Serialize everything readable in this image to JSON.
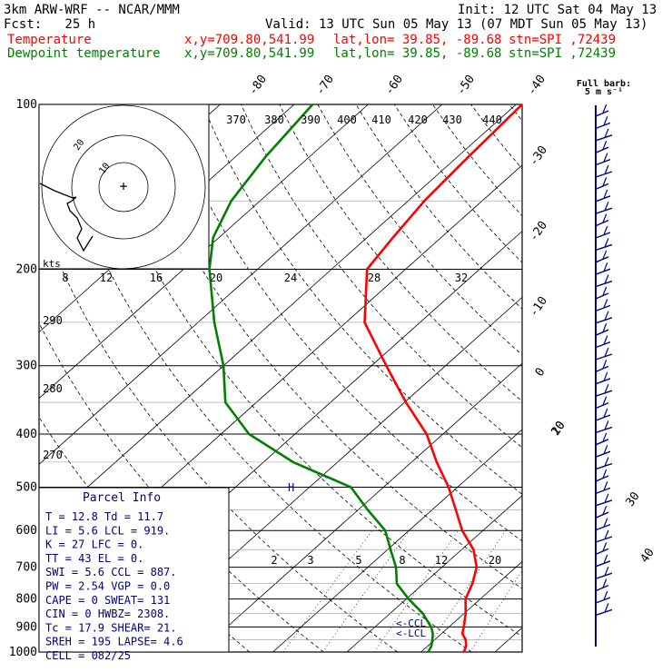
{
  "header": {
    "model": "3km ARW-WRF -- NCAR/MMM",
    "init": "Init: 12 UTC Sat 04 May 13",
    "fcst": "Fcst:   25 h",
    "valid": "Valid: 13 UTC Sun 05 May 13 (07 MDT Sun 05 May 13)",
    "temp_name": "Temperature",
    "dew_name": "Dewpoint temperature",
    "loc_xy": "x,y=709.80,541.99",
    "loc_latlon": "lat,lon= 39.85, -89.68",
    "loc_stn": "stn=SPI ,72439"
  },
  "barb_legend": {
    "line1": "Full barb:",
    "line2": "5 m s⁻¹"
  },
  "hodograph": {
    "units": "kts",
    "rings": [
      "10",
      "20"
    ]
  },
  "pressure_labels": [
    "100",
    "200",
    "300",
    "400",
    "500",
    "600",
    "700",
    "800",
    "900",
    "1000"
  ],
  "theta_labels": [
    "370",
    "380",
    "390",
    "400",
    "410",
    "420",
    "430",
    "440"
  ],
  "mixing_top_labels": [
    "8",
    "12",
    "16",
    "20",
    "24",
    "28",
    "32"
  ],
  "dry_adiabat_labels": [
    "290",
    "280",
    "270"
  ],
  "mixing_ratio_labels": [
    "2",
    "3",
    "5",
    "8",
    "12",
    "20"
  ],
  "temp_axis_labels": [
    "-80",
    "-70",
    "-60",
    "-50",
    "-40",
    "-30",
    "-20",
    "-10",
    "0",
    "10",
    "20",
    "30",
    "40"
  ],
  "marker_h": "H",
  "marker_ccl": "<-CCL",
  "marker_lcl": "<-LCL",
  "parcel": {
    "title": "Parcel Info",
    "rows": [
      "T  =    12.8 Td =  11.7",
      "LI =     5.6 LCL =  919.",
      "K  =      27 LFC =    0.",
      "TT =      43 EL  =    0.",
      "SWI =    5.6 CCL =  887.",
      "PW =    2.54 VGP =   0.0",
      "CAPE =     0 SWEAT=  131",
      "CIN =      0 HWBZ= 2308.",
      "Tc =    17.9 SHEAR=  21.",
      "SREH =   195 LAPSE=  4.6",
      "CELL = 082/25"
    ]
  },
  "colors": {
    "temperature": "#ff0000",
    "dewpoint": "#008000",
    "navy": "#000080",
    "grid": "#000000"
  },
  "chart_data": {
    "type": "line",
    "title": "",
    "xlabel": "",
    "ylabel": "",
    "y_scale": "log",
    "ylim": [
      1000,
      100
    ],
    "series": [
      {
        "name": "Temperature",
        "points": [
          [
            1000,
            15.8
          ],
          [
            975,
            15.2
          ],
          [
            950,
            14.2
          ],
          [
            925,
            12.8
          ],
          [
            900,
            12.0
          ],
          [
            850,
            10.2
          ],
          [
            800,
            8.0
          ],
          [
            750,
            6.6
          ],
          [
            700,
            4.7
          ],
          [
            650,
            1.6
          ],
          [
            600,
            -2.8
          ],
          [
            550,
            -6.8
          ],
          [
            500,
            -11.2
          ],
          [
            450,
            -16.6
          ],
          [
            400,
            -22.2
          ],
          [
            350,
            -29.8
          ],
          [
            300,
            -38.0
          ],
          [
            250,
            -47.5
          ],
          [
            200,
            -55.2
          ],
          [
            175,
            -56.5
          ],
          [
            150,
            -57.8
          ],
          [
            125,
            -58.5
          ],
          [
            100,
            -59.2
          ]
        ]
      },
      {
        "name": "Dewpoint temperature",
        "points": [
          [
            1000,
            11.0
          ],
          [
            975,
            10.5
          ],
          [
            950,
            9.7
          ],
          [
            925,
            8.8
          ],
          [
            900,
            7.6
          ],
          [
            850,
            4.4
          ],
          [
            800,
            0.3
          ],
          [
            750,
            -3.6
          ],
          [
            700,
            -6.2
          ],
          [
            650,
            -9.6
          ],
          [
            600,
            -13.2
          ],
          [
            550,
            -18.7
          ],
          [
            500,
            -24.4
          ],
          [
            450,
            -36.0
          ],
          [
            400,
            -46.2
          ],
          [
            350,
            -54.2
          ],
          [
            300,
            -60.0
          ],
          [
            250,
            -67.8
          ],
          [
            200,
            -76.5
          ],
          [
            175,
            -80.8
          ],
          [
            150,
            -83.9
          ],
          [
            125,
            -85.9
          ],
          [
            100,
            -87.5
          ]
        ]
      }
    ]
  }
}
